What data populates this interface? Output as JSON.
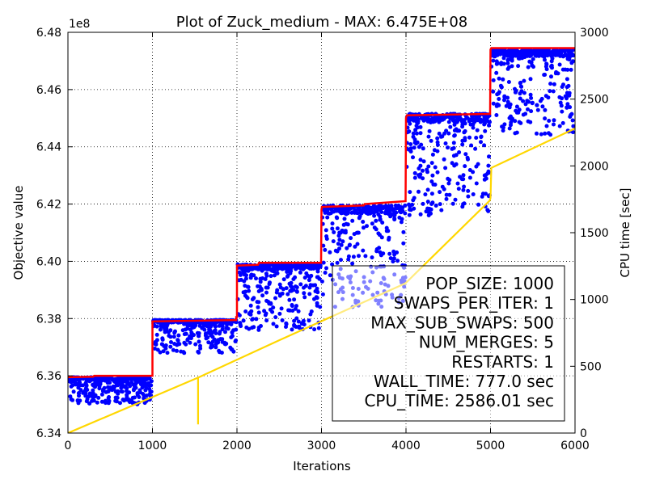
{
  "chart_data": {
    "type": "scatter",
    "title": "Plot of Zuck_medium - MAX: 6.475E+08",
    "xlabel": "Iterations",
    "ylabel": "Objective value",
    "y2label": "CPU time [sec]",
    "y_offset_label": "1e8",
    "xlim": [
      0,
      6000
    ],
    "ylim": [
      634000000,
      648000000
    ],
    "y2lim": [
      0,
      3000
    ],
    "x_ticks": [
      0,
      1000,
      2000,
      3000,
      4000,
      5000,
      6000
    ],
    "x_tick_labels": [
      "0",
      "1000",
      "2000",
      "3000",
      "4000",
      "5000",
      "6000"
    ],
    "y_ticks": [
      634000000,
      636000000,
      638000000,
      640000000,
      642000000,
      644000000,
      646000000,
      648000000
    ],
    "y_tick_labels": [
      "6.34",
      "6.36",
      "6.38",
      "6.40",
      "6.42",
      "6.44",
      "6.46",
      "6.48"
    ],
    "y2_ticks": [
      0,
      500,
      1000,
      1500,
      2000,
      2500,
      3000
    ],
    "y2_tick_labels": [
      "0",
      "500",
      "1000",
      "1500",
      "2000",
      "2500",
      "3000"
    ],
    "grid": true,
    "series": [
      {
        "color": "#0000ff",
        "kind": "scatter",
        "segments": [
          {
            "x": [
              0,
              1000
            ],
            "top": 635950000,
            "bottom": 635000000
          },
          {
            "x": [
              1000,
              2000
            ],
            "top": 637950000,
            "bottom": 636800000
          },
          {
            "x": [
              2000,
              3000
            ],
            "top": 639900000,
            "bottom": 637600000
          },
          {
            "x": [
              3000,
              4000
            ],
            "top": 641950000,
            "bottom": 638400000
          },
          {
            "x": [
              4000,
              5000
            ],
            "top": 645150000,
            "bottom": 641600000
          },
          {
            "x": [
              5000,
              6000
            ],
            "top": 647400000,
            "bottom": 644400000
          }
        ]
      },
      {
        "color": "#ff0000",
        "kind": "line",
        "x": [
          0,
          300,
          310,
          1000,
          1000,
          1990,
          1990,
          2000,
          2000,
          2250,
          2260,
          2995,
          3000,
          3005,
          3500,
          3510,
          3995,
          4000,
          4010,
          4995,
          5000,
          5010,
          6000
        ],
        "y": [
          635950000,
          635970000,
          636000000,
          636000000,
          637900000,
          637950000,
          638050000,
          638050000,
          639850000,
          639880000,
          639950000,
          639950000,
          641800000,
          641900000,
          641950000,
          642000000,
          642100000,
          645000000,
          645100000,
          645150000,
          647400000,
          647450000,
          647450000
        ]
      },
      {
        "color": "#ffd700",
        "kind": "line",
        "axis": "right",
        "x": [
          0,
          1540,
          1540,
          1540,
          1540,
          2500,
          3990,
          4000,
          4990,
          5000,
          5010,
          6000
        ],
        "y": [
          0,
          415,
          65,
          65,
          415,
          695,
          1120,
          1125,
          1740,
          1760,
          1985,
          2280
        ]
      }
    ],
    "legend_box": {
      "placement": "bottom-right",
      "lines": [
        "POP_SIZE: 1000",
        "SWAPS_PER_ITER: 1",
        "MAX_SUB_SWAPS: 500",
        "NUM_MERGES: 5",
        "RESTARTS: 1",
        "WALL_TIME: 777.0 sec",
        "CPU_TIME: 2586.01 sec"
      ]
    }
  }
}
